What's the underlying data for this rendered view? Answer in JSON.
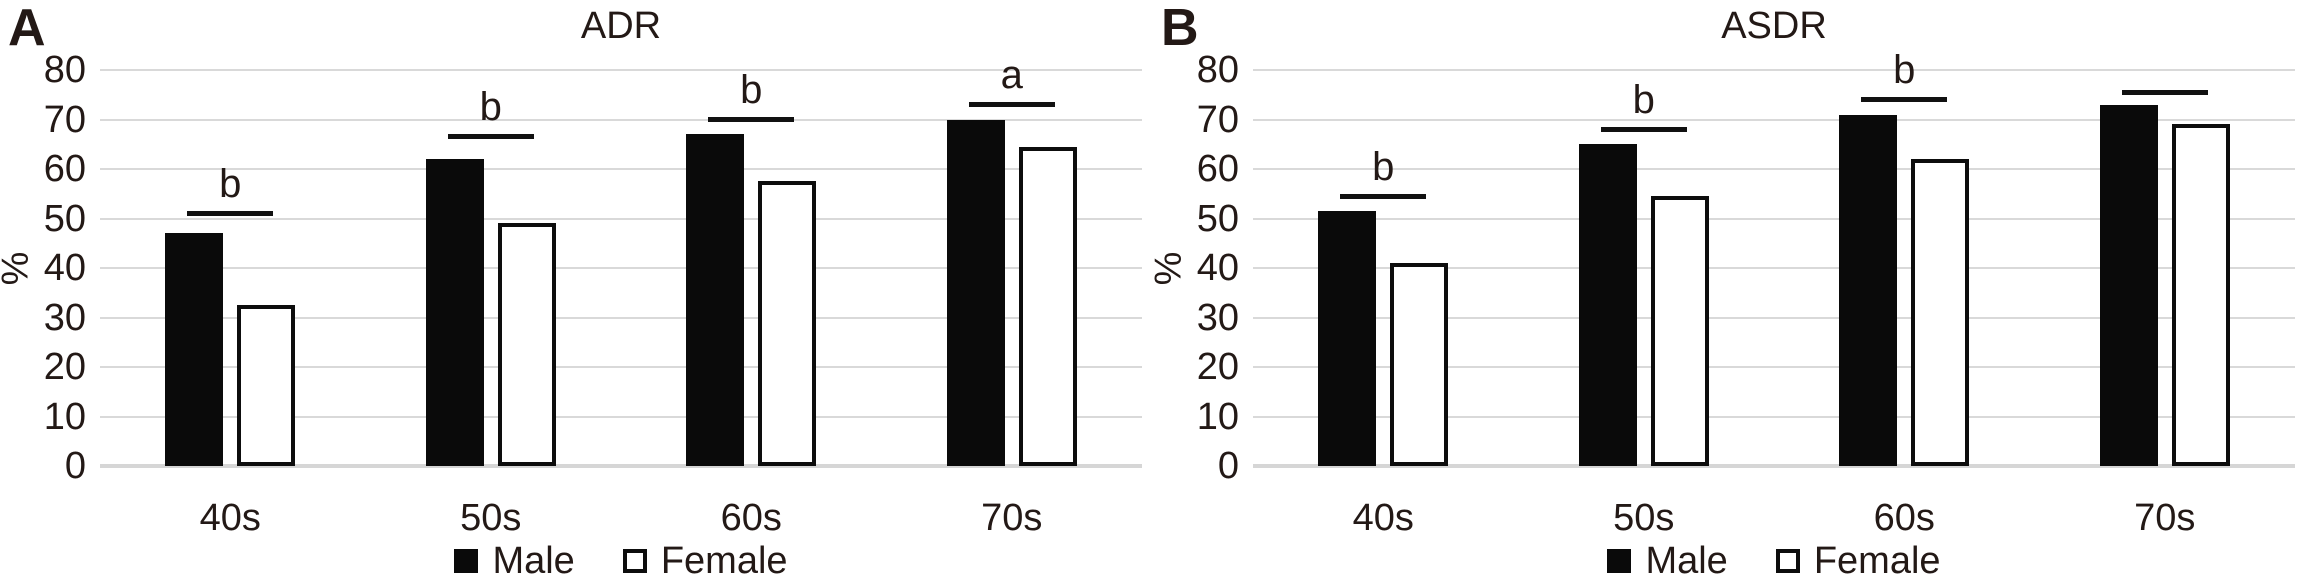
{
  "page": {
    "background": "#ffffff",
    "text_color": "#231916"
  },
  "colors": {
    "male_bar_fill": "#0a0a0a",
    "female_bar_fill": "#ffffff",
    "female_bar_border": "#0d0d0d",
    "gridline": "#d9d9d9",
    "sig_line": "#111111"
  },
  "chart_data": [
    {
      "type": "bar",
      "panel_letter": "A",
      "title": "ADR",
      "xlabel": "",
      "ylabel": "%",
      "ylim": [
        0,
        80
      ],
      "yticks": [
        0,
        10,
        20,
        30,
        40,
        50,
        60,
        70,
        80
      ],
      "grid": true,
      "legend_position": "bottom",
      "categories": [
        "40s",
        "50s",
        "60s",
        "70s"
      ],
      "series": [
        {
          "name": "Male",
          "style": "filled",
          "values": [
            47,
            62,
            67,
            70
          ]
        },
        {
          "name": "Female",
          "style": "outlined",
          "values": [
            32.5,
            49,
            57.5,
            64.5
          ]
        }
      ],
      "sig_markers": [
        {
          "label": "b",
          "line_y": 50.5
        },
        {
          "label": "b",
          "line_y": 66
        },
        {
          "label": "b",
          "line_y": 69.5
        },
        {
          "label": "a",
          "line_y": 72.5
        }
      ],
      "legend": [
        {
          "label": "Male",
          "style": "filled"
        },
        {
          "label": "Female",
          "style": "outlined"
        }
      ]
    },
    {
      "type": "bar",
      "panel_letter": "B",
      "title": "ASDR",
      "xlabel": "",
      "ylabel": "%",
      "ylim": [
        0,
        80
      ],
      "yticks": [
        0,
        10,
        20,
        30,
        40,
        50,
        60,
        70,
        80
      ],
      "grid": true,
      "legend_position": "bottom",
      "categories": [
        "40s",
        "50s",
        "60s",
        "70s"
      ],
      "series": [
        {
          "name": "Male",
          "style": "filled",
          "values": [
            51.5,
            65,
            71,
            73
          ]
        },
        {
          "name": "Female",
          "style": "outlined",
          "values": [
            41,
            54.5,
            62,
            69
          ]
        }
      ],
      "sig_markers": [
        {
          "label": "b",
          "line_y": 54
        },
        {
          "label": "b",
          "line_y": 67.5
        },
        {
          "label": "b",
          "line_y": 73.5
        },
        {
          "label": "",
          "line_y": 75
        }
      ],
      "legend": [
        {
          "label": "Male",
          "style": "filled"
        },
        {
          "label": "Female",
          "style": "outlined"
        }
      ]
    }
  ]
}
